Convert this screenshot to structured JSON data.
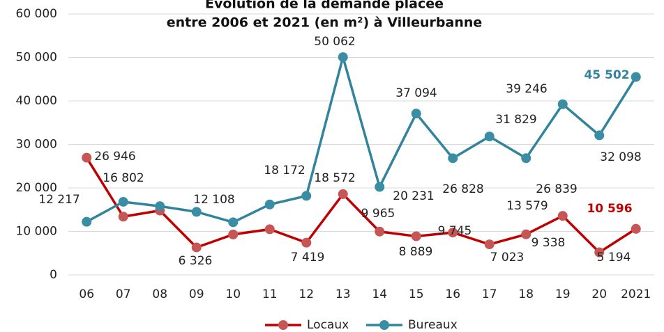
{
  "chart_data": {
    "type": "line",
    "title_lines": [
      "Évolution de la demande placée",
      "entre 2006 et 2021 (en m²) à Villeurbanne"
    ],
    "categories": [
      "06",
      "07",
      "08",
      "09",
      "10",
      "11",
      "12",
      "13",
      "14",
      "15",
      "16",
      "17",
      "18",
      "19",
      "20",
      "2021"
    ],
    "series": [
      {
        "name": "Locaux",
        "color": "#c00000",
        "marker_color": "#c65555",
        "values": [
          26946,
          13400,
          14800,
          6326,
          9300,
          10500,
          7419,
          18572,
          9965,
          8889,
          9745,
          7023,
          9338,
          13579,
          5194,
          10596
        ],
        "value_labels": [
          "26 946",
          null,
          null,
          "6 326",
          null,
          null,
          "7 419",
          "18 572",
          "9 965",
          "8 889",
          "9 745",
          "7 023",
          "9 338",
          "13 579",
          "5 194",
          "10 596"
        ]
      },
      {
        "name": "Bureaux",
        "color": "#31849b",
        "marker_color": "#3a8ea3",
        "values": [
          12217,
          16802,
          15800,
          14500,
          12108,
          16200,
          18172,
          50062,
          20231,
          37094,
          26828,
          31829,
          26839,
          39246,
          32098,
          45502
        ],
        "value_labels": [
          "12 217",
          "16 802",
          null,
          null,
          "12 108",
          null,
          "18 172",
          "50 062",
          "20 231",
          "37 094",
          "26 828",
          "31 829",
          "26 839",
          "39 246",
          "32 098",
          "45 502"
        ]
      }
    ],
    "ylim": [
      0,
      60000
    ],
    "yticks": [
      0,
      {
        "value": 10000,
        "label": "10 000"
      },
      {
        "value": 20000,
        "label": "20 000"
      },
      {
        "value": 30000,
        "label": "30 000"
      },
      {
        "value": 40000,
        "label": "40 000"
      },
      {
        "value": 50000,
        "label": "50 000"
      },
      {
        "value": 60000,
        "label": "60 000"
      }
    ],
    "grid": true,
    "legend": "bottom"
  }
}
